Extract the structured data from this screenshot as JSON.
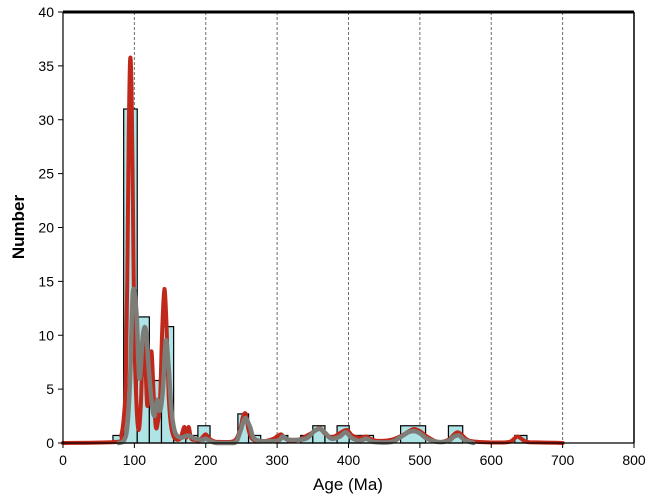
{
  "chart_data": {
    "type": "bar",
    "title": "",
    "xlabel": "Age (Ma)",
    "ylabel": "Number",
    "xlim": [
      0,
      800
    ],
    "ylim": [
      0,
      40
    ],
    "x_ticks": [
      0,
      100,
      200,
      300,
      400,
      500,
      600,
      700,
      800
    ],
    "y_ticks": [
      0,
      5,
      10,
      15,
      20,
      25,
      30,
      35,
      40
    ],
    "x_grid": "dashed vertical lines at each 100 Ma",
    "legend": "none",
    "histogram_bins": [
      {
        "from": 70,
        "to": 85,
        "count": 0.7
      },
      {
        "from": 85,
        "to": 104,
        "count": 31
      },
      {
        "from": 104,
        "to": 121,
        "count": 11.7
      },
      {
        "from": 121,
        "to": 138,
        "count": 5.8
      },
      {
        "from": 138,
        "to": 155,
        "count": 10.8
      },
      {
        "from": 155,
        "to": 172,
        "count": 0.7
      },
      {
        "from": 172,
        "to": 189,
        "count": 0.7
      },
      {
        "from": 189,
        "to": 206,
        "count": 1.6
      },
      {
        "from": 245,
        "to": 260,
        "count": 2.7
      },
      {
        "from": 260,
        "to": 277,
        "count": 0.7
      },
      {
        "from": 298,
        "to": 315,
        "count": 0.7
      },
      {
        "from": 333,
        "to": 350,
        "count": 0.7
      },
      {
        "from": 350,
        "to": 367,
        "count": 1.6
      },
      {
        "from": 367,
        "to": 384,
        "count": 0.7
      },
      {
        "from": 384,
        "to": 401,
        "count": 1.6
      },
      {
        "from": 401,
        "to": 418,
        "count": 0.7
      },
      {
        "from": 418,
        "to": 435,
        "count": 0.7
      },
      {
        "from": 473,
        "to": 508,
        "count": 1.6
      },
      {
        "from": 540,
        "to": 560,
        "count": 1.6
      },
      {
        "from": 633,
        "to": 650,
        "count": 0.7
      }
    ],
    "series": [
      {
        "color": "#c0281c",
        "x": [
          0,
          75,
          82,
          86,
          88,
          90,
          92,
          94,
          96,
          98,
          100,
          103,
          106,
          109,
          112,
          115,
          118,
          121,
          124,
          127,
          130,
          133,
          136,
          139,
          142,
          145,
          148,
          151,
          155,
          160,
          165,
          170,
          173,
          176,
          179,
          182,
          185,
          190,
          195,
          200,
          205,
          212,
          220,
          240,
          248,
          252,
          256,
          260,
          265,
          272,
          285,
          295,
          305,
          310,
          318,
          330,
          345,
          355,
          360,
          365,
          372,
          380,
          390,
          398,
          405,
          415,
          425,
          430,
          440,
          460,
          475,
          485,
          492,
          500,
          510,
          525,
          540,
          548,
          553,
          558,
          570,
          600,
          625,
          632,
          637,
          642,
          650,
          670,
          690,
          700
        ],
        "y": [
          0,
          0.1,
          0.8,
          3.0,
          6,
          15,
          28,
          35.5,
          33,
          22,
          10,
          3.5,
          1.2,
          3.5,
          9,
          8,
          3.5,
          5.5,
          8.5,
          4.5,
          1.5,
          2,
          4,
          10.5,
          14.3,
          11,
          4.5,
          1.8,
          0.6,
          0.3,
          0.5,
          1.5,
          0.5,
          1.5,
          0.5,
          0.3,
          0.3,
          0.2,
          0.5,
          0.8,
          0.4,
          0.15,
          0.1,
          0.2,
          1.2,
          2.4,
          2.7,
          1.2,
          0.4,
          0.2,
          0.2,
          0.4,
          0.8,
          0.5,
          0.2,
          0.3,
          0.8,
          1.2,
          1.4,
          1.0,
          0.6,
          0.6,
          1.0,
          1.2,
          0.7,
          0.5,
          0.6,
          0.4,
          0.2,
          0.3,
          0.7,
          1.1,
          1.3,
          1.1,
          0.6,
          0.1,
          0.3,
          0.8,
          1.0,
          0.8,
          0.2,
          0.05,
          0.1,
          0.4,
          0.6,
          0.4,
          0.1,
          0.05,
          0.02,
          0
        ]
      },
      {
        "color": "#7e7c76",
        "x": [
          78,
          85,
          90,
          94,
          98,
          103,
          107,
          112,
          116,
          120,
          124,
          128,
          132,
          136,
          140,
          144,
          148,
          152,
          157,
          165,
          175,
          185,
          195,
          200,
          206,
          215,
          240,
          248,
          255,
          262,
          270,
          300,
          308,
          316,
          340,
          352,
          360,
          368,
          376,
          388,
          396,
          404,
          415,
          425,
          435,
          460,
          474,
          484,
          492,
          500,
          510,
          525,
          540,
          548,
          555,
          562,
          575
        ],
        "y": [
          0,
          0.2,
          1.5,
          6,
          14,
          12,
          6,
          10,
          10.5,
          7,
          4,
          2.5,
          4,
          3,
          5,
          9.5,
          7,
          3,
          1,
          0.5,
          0.7,
          0.4,
          0.3,
          0.4,
          0.2,
          0,
          0,
          1.0,
          2.3,
          1.5,
          0.3,
          0.2,
          0.6,
          0.3,
          0.4,
          1.1,
          1.3,
          0.9,
          0.4,
          0.6,
          1.0,
          0.5,
          0.2,
          0.4,
          0.1,
          0.1,
          0.6,
          1.0,
          1.1,
          0.9,
          0.4,
          0.1,
          0.2,
          0.6,
          0.7,
          0.3,
          0
        ]
      }
    ]
  }
}
